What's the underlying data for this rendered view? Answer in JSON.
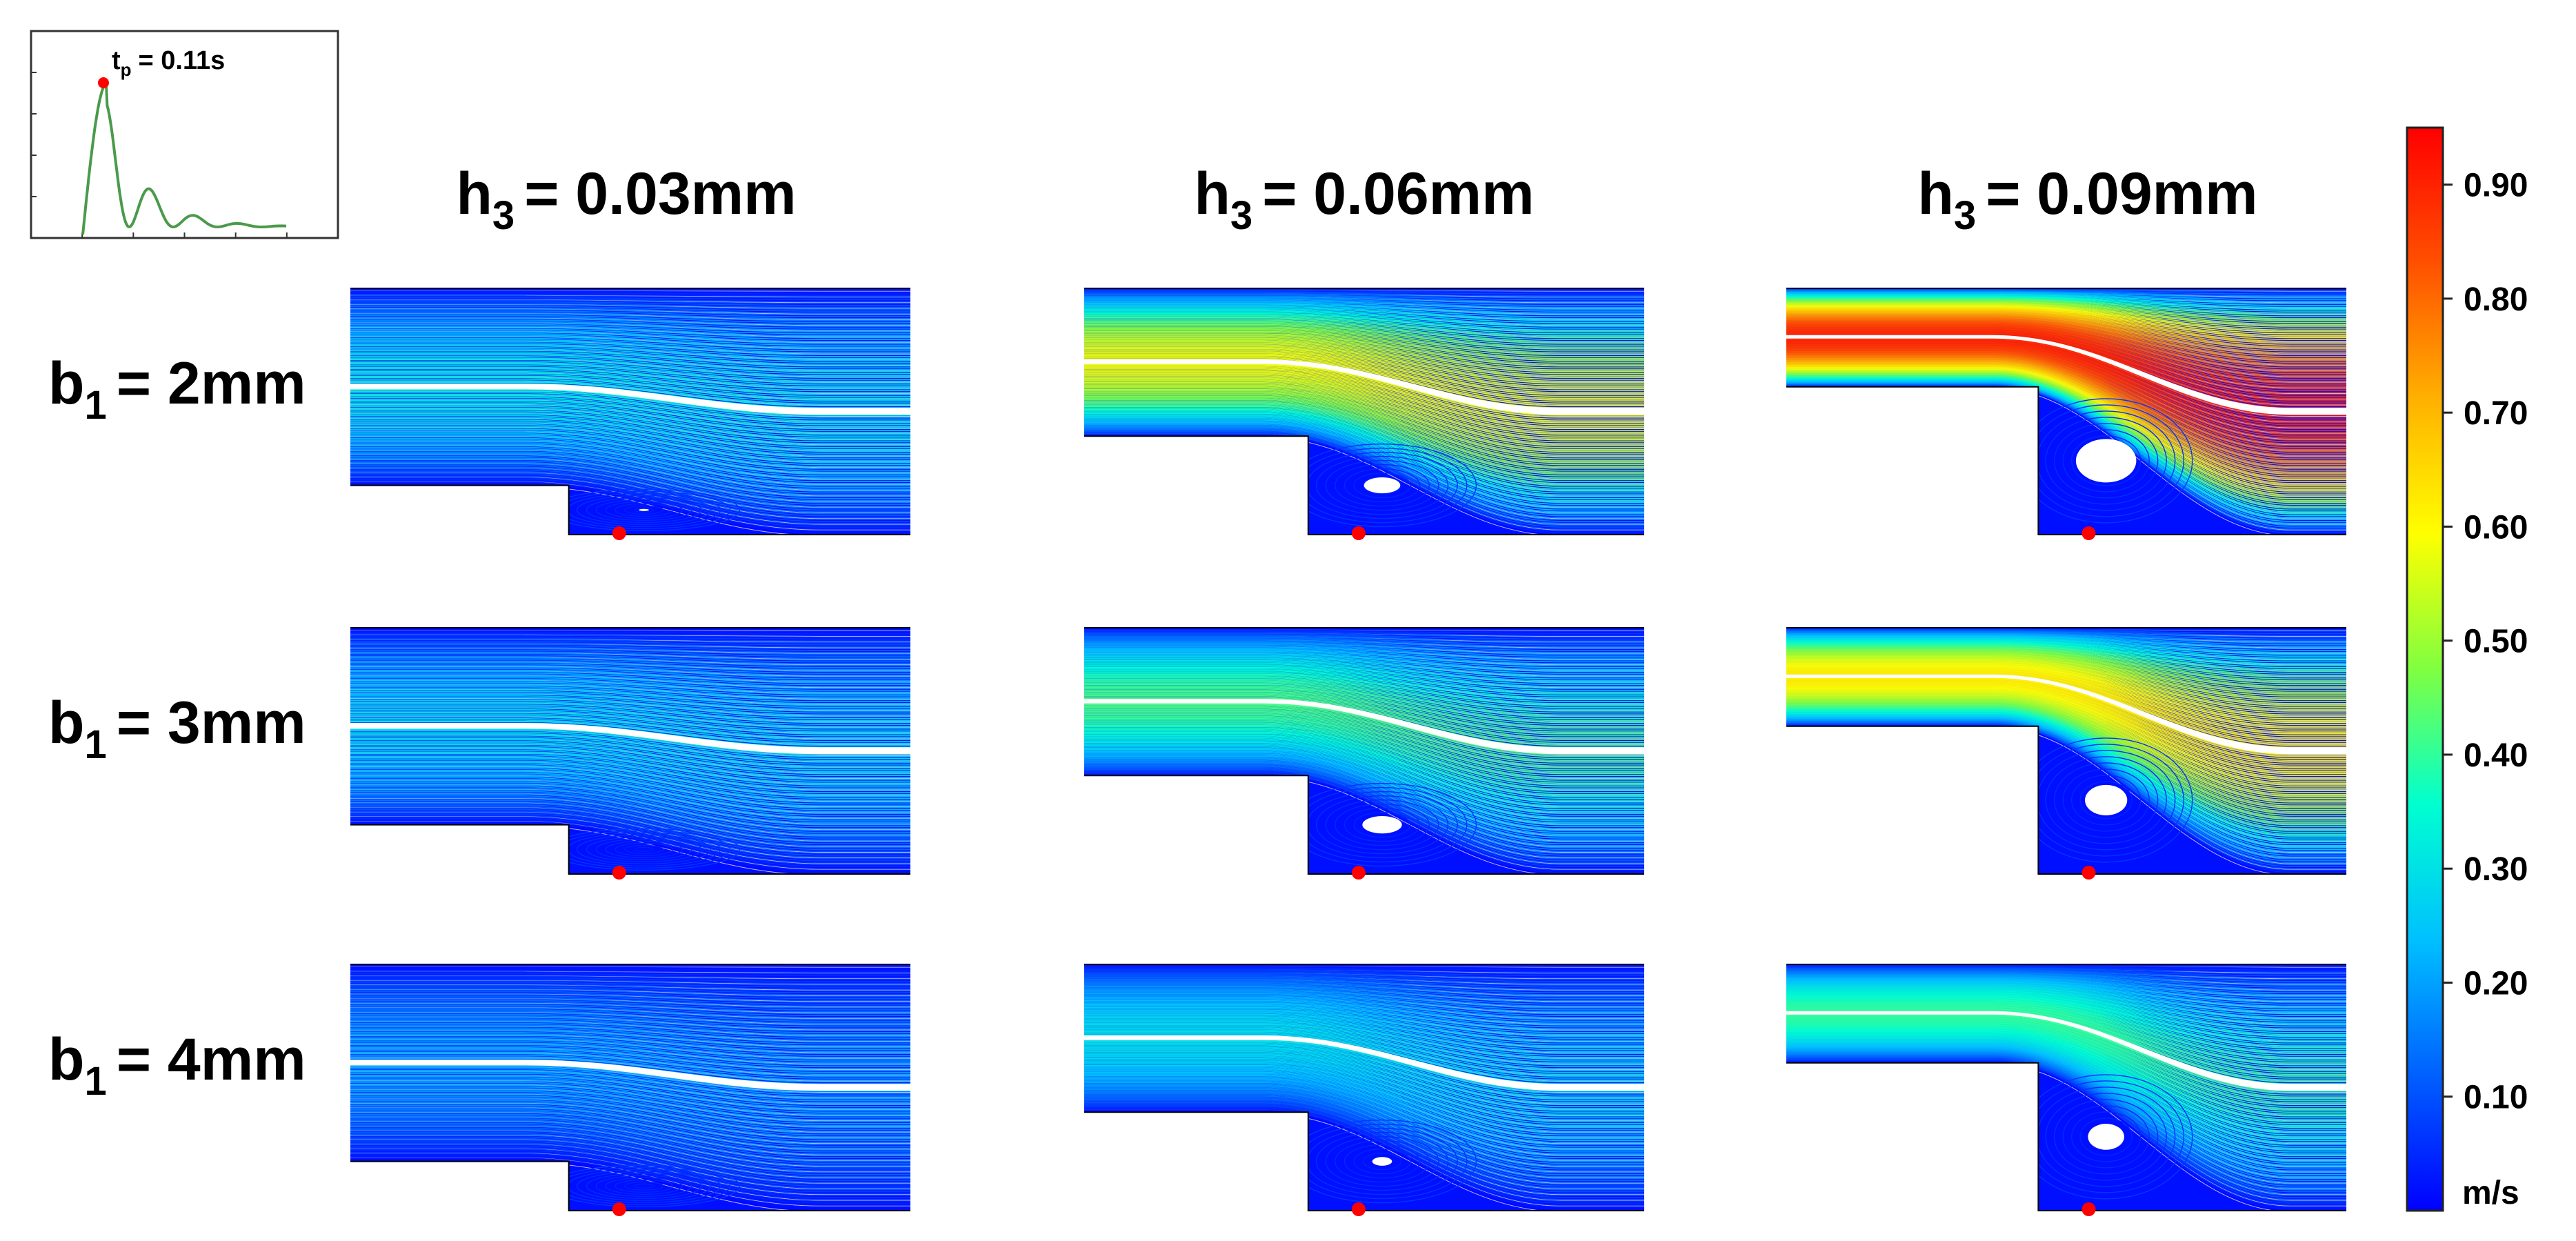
{
  "inset": {
    "label_main": "t",
    "label_sub": "p",
    "label_value": "= 0.11s",
    "label_color": "#1fa2e0",
    "curve_color": "#4a9a4a",
    "marker_color": "#ff0000"
  },
  "columns": [
    {
      "main": "h",
      "sub": "3",
      "value": "= 0.03mm"
    },
    {
      "main": "h",
      "sub": "3",
      "value": "= 0.06mm"
    },
    {
      "main": "h",
      "sub": "3",
      "value": "= 0.09mm"
    }
  ],
  "rows": [
    {
      "main": "b",
      "sub": "1",
      "value": "= 2mm"
    },
    {
      "main": "b",
      "sub": "1",
      "value": "= 3mm"
    },
    {
      "main": "b",
      "sub": "1",
      "value": "= 4mm"
    }
  ],
  "panels": [
    [
      {
        "core_speed": 0.33,
        "vortex": 0.15
      },
      {
        "core_speed": 0.58,
        "vortex": 0.55
      },
      {
        "core_speed": 0.9,
        "vortex": 1.0
      }
    ],
    [
      {
        "core_speed": 0.3,
        "vortex": 0.05
      },
      {
        "core_speed": 0.42,
        "vortex": 0.6
      },
      {
        "core_speed": 0.62,
        "vortex": 0.7
      }
    ],
    [
      {
        "core_speed": 0.22,
        "vortex": 0.05
      },
      {
        "core_speed": 0.3,
        "vortex": 0.3
      },
      {
        "core_speed": 0.4,
        "vortex": 0.6
      }
    ]
  ],
  "colorbar": {
    "ticks": [
      "0.90",
      "0.80",
      "0.70",
      "0.60",
      "0.50",
      "0.40",
      "0.30",
      "0.20",
      "0.10"
    ],
    "unit": "m/s",
    "colors": [
      "#0000ff",
      "#0060ff",
      "#00c0ff",
      "#00ffd0",
      "#80ff40",
      "#ffff00",
      "#ffb000",
      "#ff5000",
      "#ff0000"
    ]
  }
}
